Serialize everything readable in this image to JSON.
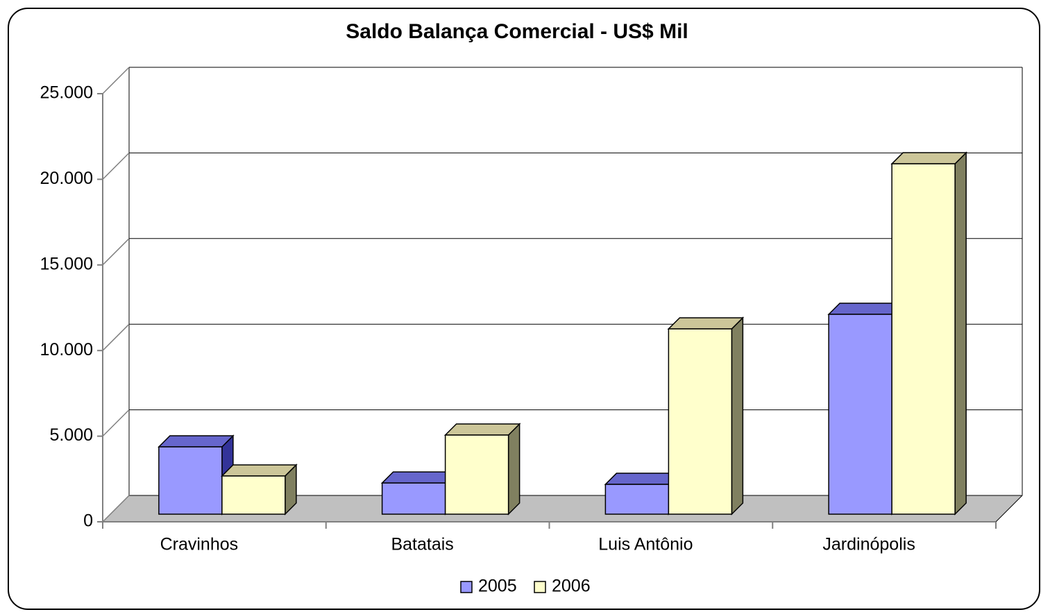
{
  "chart_data": {
    "type": "bar3d",
    "title": "Saldo Balança Comercial - US$ Mil",
    "categories": [
      "Cravinhos",
      "Batatais",
      "Luis Antônio",
      "Jardinópolis"
    ],
    "series": [
      {
        "name": "2005",
        "color": "#9999ff",
        "values": [
          3930,
          1820,
          1740,
          11670
        ]
      },
      {
        "name": "2006",
        "color": "#ffffcc",
        "values": [
          2230,
          4620,
          10820,
          20460
        ]
      }
    ],
    "ylim": [
      0,
      25000
    ],
    "yticks": [
      0,
      {
        "value": 5000,
        "label": "5.000"
      },
      {
        "value": 10000,
        "label": "10.000"
      },
      {
        "value": 15000,
        "label": "15.000"
      },
      {
        "value": 20000,
        "label": "20.000"
      },
      {
        "value": 25000,
        "label": "25.000"
      }
    ],
    "grid": true,
    "legend": "bottom"
  }
}
